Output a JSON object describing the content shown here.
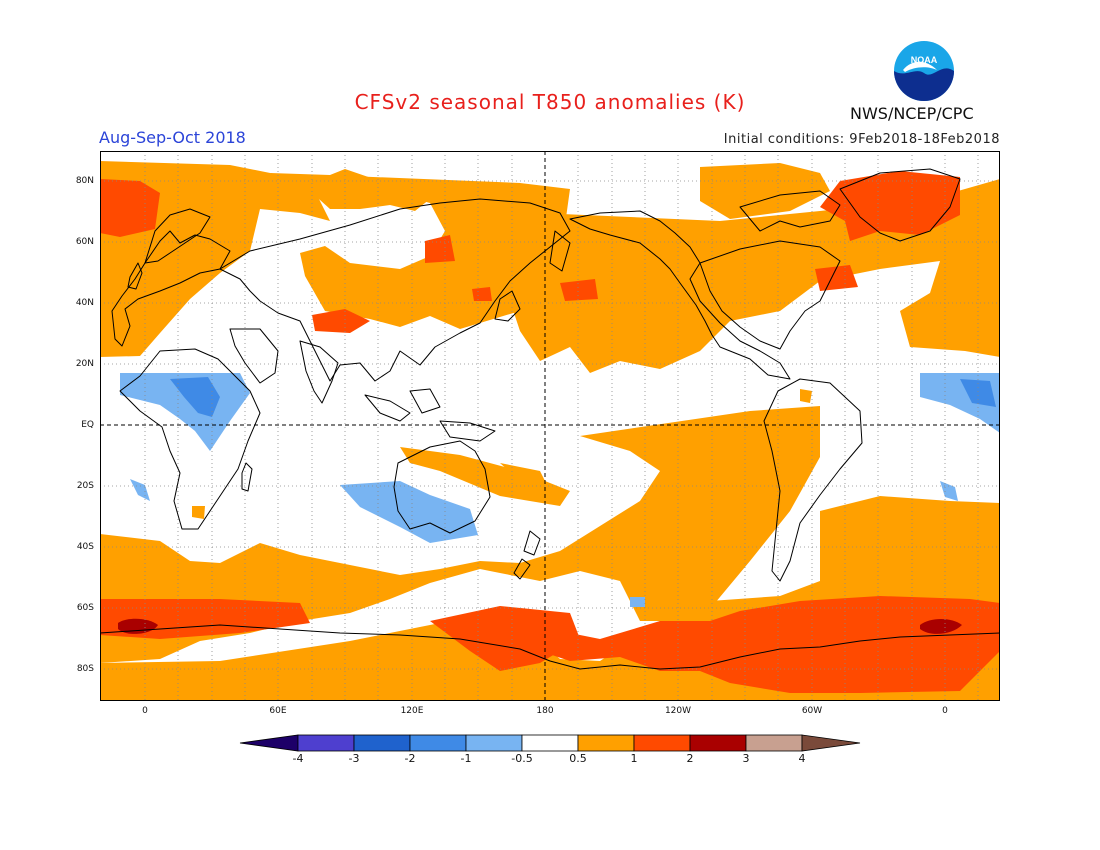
{
  "header": {
    "title": "CFSv2 seasonal T850 anomalies (K)",
    "period": "Aug-Sep-Oct 2018",
    "initial_conditions": "Initial conditions: 9Feb2018-18Feb2018",
    "agency": "NWS/NCEP/CPC",
    "logo_text": "NOAA"
  },
  "map": {
    "lat_labels": [
      "80N",
      "60N",
      "40N",
      "20N",
      "EQ",
      "20S",
      "40S",
      "60S",
      "80S"
    ],
    "lon_labels": [
      "0",
      "60E",
      "120E",
      "180",
      "120W",
      "60W",
      "0"
    ]
  },
  "colorbar": {
    "labels": [
      "-4",
      "-3",
      "-2",
      "-1",
      "-0.5",
      "0.5",
      "1",
      "2",
      "3",
      "4"
    ],
    "colors": {
      "lt_neg4": "#1d0068",
      "neg4_neg3": "#4e3fcf",
      "neg3_neg2": "#1f62cd",
      "neg2_neg1": "#3f8ae6",
      "neg1_neg05": "#78b4f2",
      "neg05_05": "#ffffff",
      "p05_1": "#ffa000",
      "p1_2": "#ff4a00",
      "p2_3": "#a90000",
      "p3_4": "#c8a090",
      "gt4": "#7a4a3a"
    }
  }
}
